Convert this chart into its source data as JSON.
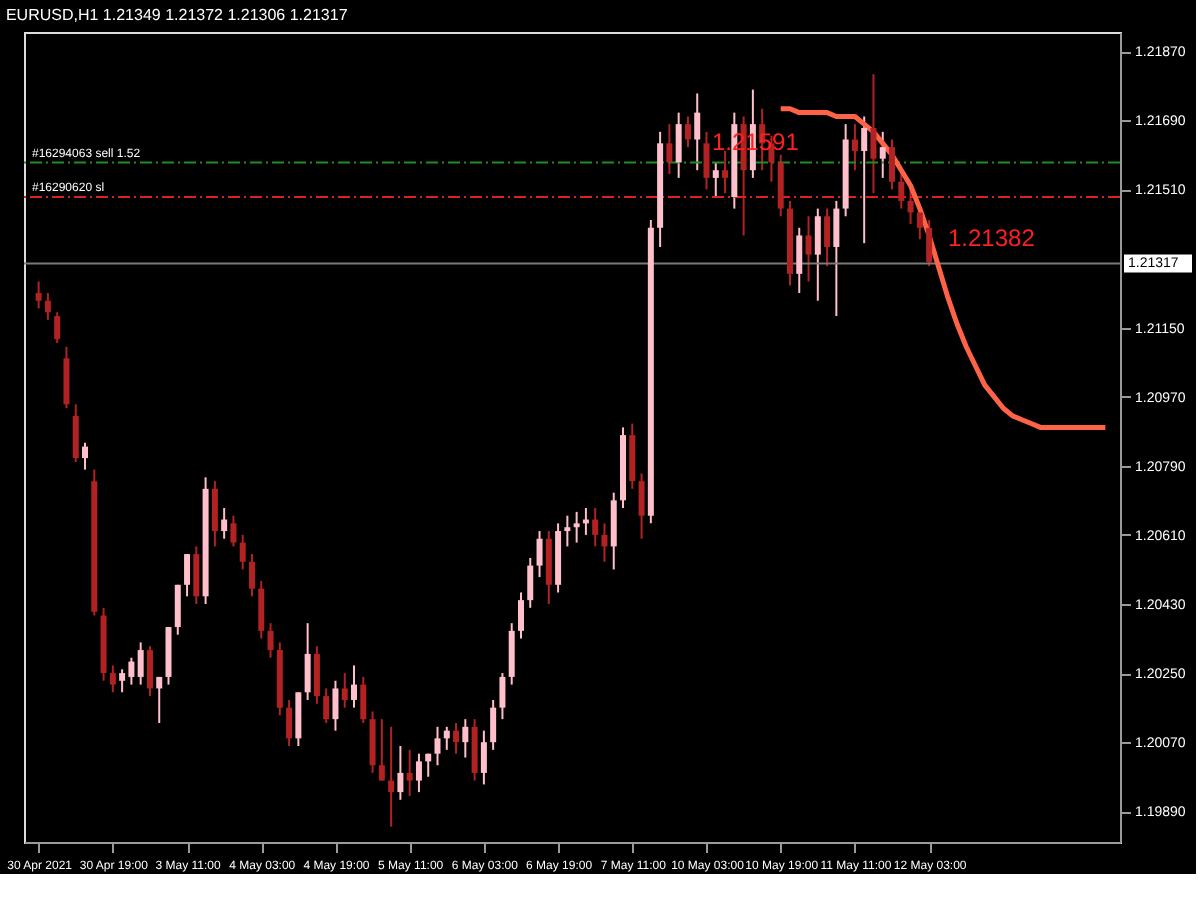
{
  "chart_data": {
    "type": "candlestick",
    "title": "EURUSD,H1  1.21349 1.21372 1.21306 1.21317",
    "categories": [
      "30 Apr 2021",
      null,
      null,
      null,
      null,
      null,
      null,
      null,
      "30 Apr 19:00",
      null,
      null,
      null,
      null,
      null,
      null,
      null,
      "3 May 11:00",
      null,
      null,
      null,
      null,
      null,
      null,
      null,
      "4 May 03:00",
      null,
      null,
      null,
      null,
      null,
      null,
      null,
      "4 May 19:00",
      null,
      null,
      null,
      null,
      null,
      null,
      null,
      "5 May 11:00",
      null,
      null,
      null,
      null,
      null,
      null,
      null,
      "6 May 03:00",
      null,
      null,
      null,
      null,
      null,
      null,
      null,
      "6 May 19:00",
      null,
      null,
      null,
      null,
      null,
      null,
      null,
      "7 May 11:00",
      null,
      null,
      null,
      null,
      null,
      null,
      null,
      "10 May 03:00",
      null,
      null,
      null,
      null,
      null,
      null,
      null,
      "10 May 19:00",
      null,
      null,
      null,
      null,
      null,
      null,
      null,
      "11 May 11:00",
      null,
      null,
      null,
      null,
      null,
      null,
      null,
      "12 May 03:00",
      null,
      null,
      null,
      null,
      null,
      null,
      null,
      null,
      null,
      null,
      null,
      null,
      null,
      null,
      null,
      null,
      null,
      null,
      null
    ],
    "ohlc": [
      [
        1.2124,
        1.2127,
        1.212,
        1.2122
      ],
      [
        1.2122,
        1.2124,
        1.2117,
        1.2119
      ],
      [
        1.2118,
        1.2119,
        1.2111,
        1.2112
      ],
      [
        1.2107,
        1.211,
        1.2094,
        1.2095
      ],
      [
        1.2092,
        1.2095,
        1.208,
        1.2081
      ],
      [
        1.2081,
        1.2085,
        1.2078,
        1.2084
      ],
      [
        1.2075,
        1.2078,
        1.204,
        1.2041
      ],
      [
        1.204,
        1.2042,
        1.2023,
        1.2025
      ],
      [
        1.2025,
        1.2027,
        1.202,
        1.2022
      ],
      [
        1.2023,
        1.2026,
        1.202,
        1.2025
      ],
      [
        1.2024,
        1.2029,
        1.2022,
        1.2028
      ],
      [
        1.2024,
        1.2033,
        1.2022,
        1.2031
      ],
      [
        1.2031,
        1.2032,
        1.2019,
        1.2021
      ],
      [
        1.2021,
        1.2024,
        1.2012,
        1.2024
      ],
      [
        1.2024,
        1.2037,
        1.2022,
        1.2037
      ],
      [
        1.2037,
        1.2048,
        1.2035,
        1.2048
      ],
      [
        1.2048,
        1.2056,
        1.2045,
        1.2056
      ],
      [
        1.2056,
        1.2058,
        1.2043,
        1.2045
      ],
      [
        1.2045,
        1.2076,
        1.2043,
        1.2073
      ],
      [
        1.2073,
        1.2075,
        1.2058,
        1.2062
      ],
      [
        1.2062,
        1.2068,
        1.206,
        1.2065
      ],
      [
        1.2064,
        1.2066,
        1.2058,
        1.2059
      ],
      [
        1.2059,
        1.2061,
        1.2052,
        1.2054
      ],
      [
        1.2054,
        1.2056,
        1.2045,
        1.2047
      ],
      [
        1.2047,
        1.2049,
        1.2034,
        1.2036
      ],
      [
        1.2036,
        1.2038,
        1.2029,
        1.2031
      ],
      [
        1.2031,
        1.2033,
        1.2014,
        1.2016
      ],
      [
        1.2016,
        1.2018,
        1.2006,
        1.2008
      ],
      [
        1.2008,
        1.202,
        1.2006,
        1.202
      ],
      [
        1.202,
        1.2038,
        1.2018,
        1.203
      ],
      [
        1.203,
        1.2032,
        1.2017,
        1.2019
      ],
      [
        1.2019,
        1.2021,
        1.2012,
        1.2013
      ],
      [
        1.2013,
        1.2023,
        1.201,
        1.2021
      ],
      [
        1.2021,
        1.2025,
        1.2016,
        1.2018
      ],
      [
        1.2018,
        1.2027,
        1.2016,
        1.2022
      ],
      [
        1.2022,
        1.2024,
        1.2012,
        1.2013
      ],
      [
        1.2013,
        1.2015,
        1.1999,
        1.2001
      ],
      [
        1.2001,
        1.2013,
        1.1997,
        1.1997
      ],
      [
        1.1997,
        1.2011,
        1.1985,
        1.1994
      ],
      [
        1.1994,
        1.2006,
        1.1992,
        1.1999
      ],
      [
        1.1999,
        1.2005,
        1.1993,
        1.1997
      ],
      [
        1.1997,
        1.2004,
        1.1994,
        1.2002
      ],
      [
        1.2002,
        1.2004,
        1.1998,
        1.2004
      ],
      [
        1.2004,
        1.2011,
        1.2001,
        1.2008
      ],
      [
        1.2008,
        1.2011,
        1.2005,
        1.201
      ],
      [
        1.201,
        1.2012,
        1.2004,
        1.2007
      ],
      [
        1.2007,
        1.2013,
        1.2003,
        1.2011
      ],
      [
        1.2011,
        1.2013,
        1.1997,
        1.1999
      ],
      [
        1.1999,
        1.201,
        1.1996,
        1.2007
      ],
      [
        1.2007,
        1.2018,
        1.2005,
        1.2016
      ],
      [
        1.2016,
        1.2025,
        1.2013,
        1.2024
      ],
      [
        1.2024,
        1.2038,
        1.2022,
        1.2036
      ],
      [
        1.2036,
        1.2046,
        1.2034,
        1.2044
      ],
      [
        1.2044,
        1.2055,
        1.2042,
        1.2053
      ],
      [
        1.2053,
        1.2062,
        1.205,
        1.206
      ],
      [
        1.206,
        1.2062,
        1.2043,
        1.2048
      ],
      [
        1.2048,
        1.2064,
        1.2046,
        1.2062
      ],
      [
        1.2062,
        1.2066,
        1.2058,
        1.2063
      ],
      [
        1.2063,
        1.2067,
        1.2059,
        1.2064
      ],
      [
        1.2064,
        1.2068,
        1.2061,
        1.2065
      ],
      [
        1.2065,
        1.2068,
        1.2058,
        1.2061
      ],
      [
        1.2061,
        1.2064,
        1.2054,
        1.2058
      ],
      [
        1.2058,
        1.2072,
        1.2052,
        1.207
      ],
      [
        1.207,
        1.2089,
        1.2068,
        1.2087
      ],
      [
        1.2087,
        1.209,
        1.2073,
        1.2075
      ],
      [
        1.2075,
        1.2077,
        1.206,
        1.2066
      ],
      [
        1.2066,
        1.2143,
        1.2064,
        1.2141
      ],
      [
        1.2141,
        1.2166,
        1.2136,
        1.2163
      ],
      [
        1.2163,
        1.2168,
        1.2155,
        1.2158
      ],
      [
        1.2158,
        1.2171,
        1.2154,
        1.2168
      ],
      [
        1.2168,
        1.217,
        1.2162,
        1.2164
      ],
      [
        1.2164,
        1.2176,
        1.2156,
        1.2171
      ],
      [
        1.2163,
        1.2166,
        1.2151,
        1.2154
      ],
      [
        1.2154,
        1.2158,
        1.2149,
        1.2156
      ],
      [
        1.2156,
        1.2161,
        1.215,
        1.2154
      ],
      [
        1.2149,
        1.2171,
        1.2146,
        1.2168
      ],
      [
        1.2168,
        1.217,
        1.2139,
        1.2156
      ],
      [
        1.2156,
        1.2177,
        1.2154,
        1.2168
      ],
      [
        1.2168,
        1.2172,
        1.2156,
        1.2163
      ],
      [
        1.2163,
        1.2165,
        1.2153,
        1.2158
      ],
      [
        1.2158,
        1.216,
        1.2144,
        1.2146
      ],
      [
        1.2146,
        1.2148,
        1.2126,
        1.2129
      ],
      [
        1.2129,
        1.2141,
        1.2124,
        1.2139
      ],
      [
        1.2139,
        1.2144,
        1.2127,
        1.2134
      ],
      [
        1.2134,
        1.2146,
        1.2122,
        1.2144
      ],
      [
        1.2144,
        1.2146,
        1.2131,
        1.2136
      ],
      [
        1.2136,
        1.2148,
        1.2118,
        1.2146
      ],
      [
        1.2146,
        1.2168,
        1.2144,
        1.2164
      ],
      [
        1.2164,
        1.2168,
        1.2156,
        1.2161
      ],
      [
        1.2161,
        1.217,
        1.2137,
        1.2167
      ],
      [
        1.2167,
        1.2181,
        1.215,
        1.2159
      ],
      [
        1.2159,
        1.2166,
        1.2154,
        1.2162
      ],
      [
        1.2162,
        1.2164,
        1.2151,
        1.2153
      ],
      [
        1.2153,
        1.2155,
        1.2146,
        1.2148
      ],
      [
        1.2148,
        1.2151,
        1.2142,
        1.2145
      ],
      [
        1.2145,
        1.2147,
        1.2138,
        1.2141
      ],
      [
        1.2141,
        1.2143,
        1.2131,
        1.2132
      ],
      null,
      null,
      null,
      null,
      null,
      null,
      null,
      null,
      null,
      null,
      null,
      null,
      null,
      null,
      null,
      null,
      null,
      null,
      null
    ],
    "colors": [
      "#b22222",
      "#b22222",
      "#b22222",
      "#b22222",
      "#b22222",
      "#ffc0cb",
      "#b22222",
      "#b22222",
      "#b22222",
      "#ffc0cb",
      "#ffc0cb",
      "#ffc0cb",
      "#b22222",
      "#ffc0cb",
      "#ffc0cb",
      "#ffc0cb",
      "#ffc0cb",
      "#b22222",
      "#ffc0cb",
      "#b22222",
      "#ffc0cb",
      "#b22222",
      "#b22222",
      "#b22222",
      "#b22222",
      "#b22222",
      "#b22222",
      "#b22222",
      "#ffc0cb",
      "#ffc0cb",
      "#b22222",
      "#b22222",
      "#ffc0cb",
      "#b22222",
      "#ffc0cb",
      "#b22222",
      "#b22222",
      "#b22222",
      "#b22222",
      "#ffc0cb",
      "#b22222",
      "#ffc0cb",
      "#ffc0cb",
      "#ffc0cb",
      "#ffc0cb",
      "#b22222",
      "#ffc0cb",
      "#b22222",
      "#ffc0cb",
      "#ffc0cb",
      "#ffc0cb",
      "#ffc0cb",
      "#ffc0cb",
      "#ffc0cb",
      "#ffc0cb",
      "#b22222",
      "#ffc0cb",
      "#ffc0cb",
      "#ffc0cb",
      "#ffc0cb",
      "#b22222",
      "#b22222",
      "#ffc0cb",
      "#ffc0cb",
      "#b22222",
      "#b22222",
      "#ffc0cb",
      "#ffc0cb",
      "#b22222",
      "#ffc0cb",
      "#b22222",
      "#ffc0cb",
      "#b22222",
      "#ffc0cb",
      "#b22222",
      "#ffc0cb",
      "#b22222",
      "#ffc0cb",
      "#b22222",
      "#b22222",
      "#b22222",
      "#b22222",
      "#ffc0cb",
      "#b22222",
      "#ffc0cb",
      "#b22222",
      "#ffc0cb",
      "#ffc0cb",
      "#b22222",
      "#ffc0cb",
      "#b22222",
      "#ffc0cb",
      "#b22222",
      "#b22222",
      "#b22222",
      "#b22222",
      "#b22222",
      null,
      null,
      null,
      null,
      null,
      null,
      null,
      null,
      null,
      null,
      null,
      null,
      null,
      null,
      null,
      null,
      null,
      null,
      null
    ],
    "series": [
      {
        "type": "line",
        "color": "#ff6347",
        "values": [
          null,
          null,
          null,
          null,
          null,
          null,
          null,
          null,
          null,
          null,
          null,
          null,
          null,
          null,
          null,
          null,
          null,
          null,
          null,
          null,
          null,
          null,
          null,
          null,
          null,
          null,
          null,
          null,
          null,
          null,
          null,
          null,
          null,
          null,
          null,
          null,
          null,
          null,
          null,
          null,
          null,
          null,
          null,
          null,
          null,
          null,
          null,
          null,
          null,
          null,
          null,
          null,
          null,
          null,
          null,
          null,
          null,
          null,
          null,
          null,
          null,
          null,
          null,
          null,
          null,
          null,
          null,
          null,
          null,
          null,
          null,
          null,
          null,
          null,
          null,
          null,
          null,
          null,
          null,
          null,
          1.2172,
          1.2172,
          1.2171,
          1.2171,
          1.2171,
          1.2171,
          1.217,
          1.217,
          1.217,
          1.2168,
          1.2166,
          1.2163,
          1.216,
          1.2156,
          1.2152,
          1.2146,
          1.2139,
          1.2131,
          1.2123,
          1.2116,
          1.211,
          1.2105,
          1.21,
          1.2097,
          1.2094,
          1.2092,
          1.2091,
          1.209,
          1.2089,
          1.2089,
          1.2089,
          1.2089,
          1.2089,
          1.2089,
          1.2089,
          1.2089
        ]
      }
    ],
    "ylim": [
      1.1981,
      1.2192
    ],
    "yticks": [
      {
        "value": 1.1989,
        "label": "1.19890"
      },
      {
        "value": 1.2007,
        "label": "1.20070"
      },
      {
        "value": 1.2025,
        "label": "1.20250"
      },
      {
        "value": 1.2043,
        "label": "1.20430"
      },
      {
        "value": 1.2061,
        "label": "1.20610"
      },
      {
        "value": 1.2079,
        "label": "1.20790"
      },
      {
        "value": 1.2097,
        "label": "1.20970"
      },
      {
        "value": 1.2115,
        "label": "1.21150"
      },
      {
        "value": 1.2151,
        "label": "1.21510"
      },
      {
        "value": 1.2169,
        "label": "1.21690"
      },
      {
        "value": 1.2187,
        "label": "1.21870"
      }
    ],
    "ref_lines": [
      {
        "axis": "y",
        "value": 1.2158,
        "label": "#16294063 sell 1.52",
        "color": "#1f8f1f",
        "line_style": "dashdot"
      },
      {
        "axis": "y",
        "value": 1.2149,
        "label": "#16290620 sl",
        "color": "#e02020",
        "line_style": "dashdot"
      },
      {
        "axis": "y",
        "value": 1.21317,
        "label": "1.21317",
        "color": "#7a7a7a",
        "line_style": "solid"
      }
    ],
    "annotations": [
      "1.21591",
      "1.21382"
    ],
    "grid": false
  }
}
